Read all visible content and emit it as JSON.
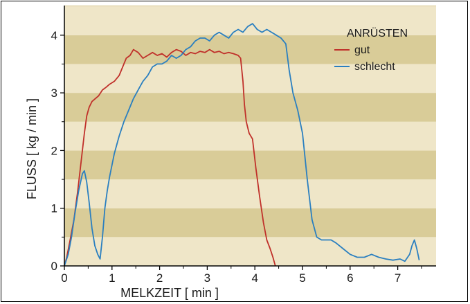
{
  "chart_data": {
    "type": "line",
    "xlabel": "MELKZEIT  [ min ]",
    "ylabel": "FLUSS [ kg / min ]",
    "xlim": [
      0,
      7.6
    ],
    "ylim": [
      0,
      4.45
    ],
    "x_ticks": [
      "0",
      "1",
      "2",
      "3",
      "4",
      "5",
      "6",
      "7"
    ],
    "y_ticks": [
      "0",
      "1",
      "2",
      "3",
      "4"
    ],
    "background_bands": "alternating tan and beige horizontal stripes every 0.5 kg/min",
    "legend": {
      "title": "ANRÜSTEN",
      "position": "top-right"
    },
    "series": [
      {
        "name": "gut",
        "color": "#c0302a",
        "x": [
          0.0,
          0.05,
          0.12,
          0.2,
          0.28,
          0.35,
          0.42,
          0.47,
          0.52,
          0.58,
          0.65,
          0.72,
          0.8,
          0.88,
          0.95,
          1.05,
          1.15,
          1.25,
          1.3,
          1.38,
          1.45,
          1.55,
          1.65,
          1.75,
          1.85,
          1.95,
          2.05,
          2.15,
          2.25,
          2.35,
          2.45,
          2.55,
          2.65,
          2.75,
          2.85,
          2.95,
          3.05,
          3.15,
          3.25,
          3.35,
          3.45,
          3.55,
          3.65,
          3.7,
          3.75,
          3.78,
          3.82,
          3.88,
          3.95,
          4.02,
          4.1,
          4.18,
          4.25,
          4.32,
          4.38,
          4.43
        ],
        "y": [
          0.0,
          0.15,
          0.45,
          0.8,
          1.3,
          1.8,
          2.3,
          2.6,
          2.75,
          2.85,
          2.9,
          2.95,
          3.05,
          3.1,
          3.15,
          3.2,
          3.3,
          3.5,
          3.6,
          3.65,
          3.75,
          3.7,
          3.6,
          3.65,
          3.7,
          3.65,
          3.68,
          3.62,
          3.7,
          3.75,
          3.72,
          3.65,
          3.7,
          3.68,
          3.72,
          3.7,
          3.75,
          3.7,
          3.72,
          3.68,
          3.7,
          3.68,
          3.65,
          3.6,
          3.2,
          2.8,
          2.5,
          2.3,
          2.2,
          1.7,
          1.2,
          0.75,
          0.45,
          0.3,
          0.15,
          0.0
        ]
      },
      {
        "name": "schlecht",
        "color": "#2a7fc0",
        "x": [
          0.0,
          0.08,
          0.15,
          0.22,
          0.3,
          0.38,
          0.42,
          0.47,
          0.52,
          0.58,
          0.64,
          0.7,
          0.75,
          0.8,
          0.85,
          0.9,
          0.95,
          1.05,
          1.15,
          1.25,
          1.35,
          1.45,
          1.55,
          1.65,
          1.75,
          1.85,
          1.95,
          2.05,
          2.15,
          2.25,
          2.35,
          2.45,
          2.55,
          2.65,
          2.75,
          2.85,
          2.95,
          3.05,
          3.15,
          3.25,
          3.35,
          3.45,
          3.55,
          3.65,
          3.75,
          3.85,
          3.95,
          4.05,
          4.15,
          4.25,
          4.35,
          4.45,
          4.55,
          4.65,
          4.72,
          4.8,
          4.9,
          5.0,
          5.1,
          5.2,
          5.3,
          5.4,
          5.5,
          5.6,
          5.7,
          5.85,
          6.0,
          6.15,
          6.3,
          6.45,
          6.6,
          6.75,
          6.9,
          7.05,
          7.15,
          7.25,
          7.3,
          7.35,
          7.4,
          7.45
        ],
        "y": [
          0.0,
          0.2,
          0.5,
          0.9,
          1.3,
          1.6,
          1.65,
          1.45,
          1.1,
          0.65,
          0.35,
          0.2,
          0.12,
          0.5,
          1.0,
          1.3,
          1.55,
          1.95,
          2.25,
          2.5,
          2.7,
          2.9,
          3.05,
          3.2,
          3.3,
          3.45,
          3.5,
          3.5,
          3.55,
          3.65,
          3.6,
          3.65,
          3.75,
          3.8,
          3.9,
          3.95,
          3.95,
          3.9,
          4.0,
          4.05,
          4.0,
          3.95,
          4.05,
          4.1,
          4.05,
          4.15,
          4.2,
          4.1,
          4.05,
          4.1,
          4.05,
          4.0,
          3.95,
          3.85,
          3.4,
          3.0,
          2.7,
          2.3,
          1.5,
          0.8,
          0.5,
          0.45,
          0.45,
          0.45,
          0.4,
          0.3,
          0.2,
          0.15,
          0.15,
          0.2,
          0.15,
          0.12,
          0.1,
          0.12,
          0.08,
          0.2,
          0.35,
          0.45,
          0.3,
          0.1
        ]
      }
    ]
  }
}
